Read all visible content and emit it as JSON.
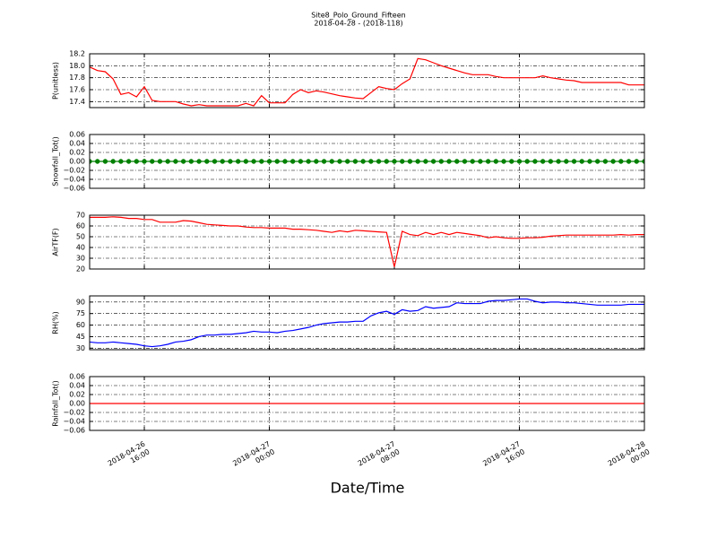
{
  "chart_data": {
    "type": "line",
    "title": "Site8_Polo_Ground_Fifteen",
    "subtitle": "2018-04-28 - (2018-118)",
    "xlabel": "Date/Time",
    "grid": true,
    "xlim": [
      "2018-04-26 12:30",
      "2018-04-28 00:00"
    ],
    "xticks": [
      {
        "value": "2018-04-26 16:00",
        "label": [
          "2018-04-26",
          "16:00"
        ]
      },
      {
        "value": "2018-04-27 00:00",
        "label": [
          "2018-04-27",
          "00:00"
        ]
      },
      {
        "value": "2018-04-27 08:00",
        "label": [
          "2018-04-27",
          "08:00"
        ]
      },
      {
        "value": "2018-04-27 16:00",
        "label": [
          "2018-04-27",
          "16:00"
        ]
      },
      {
        "value": "2018-04-28 00:00",
        "label": [
          "2018-04-28",
          "00:00"
        ]
      }
    ],
    "x": [
      "2018-04-26 12:30",
      "2018-04-26 13:00",
      "2018-04-26 13:30",
      "2018-04-26 14:00",
      "2018-04-26 14:30",
      "2018-04-26 15:00",
      "2018-04-26 15:30",
      "2018-04-26 16:00",
      "2018-04-26 16:30",
      "2018-04-26 17:00",
      "2018-04-26 17:30",
      "2018-04-26 18:00",
      "2018-04-26 18:30",
      "2018-04-26 19:00",
      "2018-04-26 19:30",
      "2018-04-26 20:00",
      "2018-04-26 20:30",
      "2018-04-26 21:00",
      "2018-04-26 21:30",
      "2018-04-26 22:00",
      "2018-04-26 22:30",
      "2018-04-26 23:00",
      "2018-04-26 23:30",
      "2018-04-27 00:00",
      "2018-04-27 00:30",
      "2018-04-27 01:00",
      "2018-04-27 01:30",
      "2018-04-27 02:00",
      "2018-04-27 02:30",
      "2018-04-27 03:00",
      "2018-04-27 03:30",
      "2018-04-27 04:00",
      "2018-04-27 04:30",
      "2018-04-27 05:00",
      "2018-04-27 05:30",
      "2018-04-27 06:00",
      "2018-04-27 06:30",
      "2018-04-27 07:00",
      "2018-04-27 07:30",
      "2018-04-27 08:00",
      "2018-04-27 08:30",
      "2018-04-27 09:00",
      "2018-04-27 09:30",
      "2018-04-27 10:00",
      "2018-04-27 10:30",
      "2018-04-27 11:00",
      "2018-04-27 11:30",
      "2018-04-27 12:00",
      "2018-04-27 12:30",
      "2018-04-27 13:00",
      "2018-04-27 13:30",
      "2018-04-27 14:00",
      "2018-04-27 14:30",
      "2018-04-27 15:00",
      "2018-04-27 15:30",
      "2018-04-27 16:00",
      "2018-04-27 16:30",
      "2018-04-27 17:00",
      "2018-04-27 17:30",
      "2018-04-27 18:00",
      "2018-04-27 18:30",
      "2018-04-27 19:00",
      "2018-04-27 19:30",
      "2018-04-27 20:00",
      "2018-04-27 20:30",
      "2018-04-27 21:00",
      "2018-04-27 21:30",
      "2018-04-27 22:00",
      "2018-04-27 22:30",
      "2018-04-27 23:00",
      "2018-04-27 23:30",
      "2018-04-28 00:00"
    ],
    "panels": [
      {
        "ylabel": "P(unitless)",
        "ylim": [
          17.3,
          18.2
        ],
        "yticks": [
          17.4,
          17.6,
          17.8,
          {
            "value": 18.0,
            "label": "18.0"
          },
          18.2
        ],
        "series": [
          {
            "color": "#ff0000",
            "values": [
              17.98,
              17.92,
              17.9,
              17.78,
              17.52,
              17.55,
              17.48,
              17.65,
              17.42,
              17.4,
              17.4,
              17.4,
              17.36,
              17.33,
              17.35,
              17.33,
              17.33,
              17.33,
              17.33,
              17.33,
              17.37,
              17.33,
              17.5,
              17.38,
              17.38,
              17.38,
              17.52,
              17.6,
              17.55,
              17.58,
              17.56,
              17.53,
              17.5,
              17.48,
              17.46,
              17.45,
              17.55,
              17.65,
              17.62,
              17.6,
              17.7,
              17.78,
              18.12,
              18.1,
              18.05,
              18.0,
              17.96,
              17.92,
              17.88,
              17.85,
              17.85,
              17.85,
              17.82,
              17.8,
              17.8,
              17.8,
              17.8,
              17.8,
              17.83,
              17.8,
              17.78,
              17.76,
              17.75,
              17.72,
              17.72,
              17.72,
              17.72,
              17.72,
              17.72,
              17.68,
              17.68,
              17.68
            ]
          }
        ]
      },
      {
        "ylabel": "Snowfall_Tot()",
        "ylim": [
          -0.06,
          0.06
        ],
        "yticks": [
          {
            "value": -0.06,
            "label": "−0.06"
          },
          {
            "value": -0.04,
            "label": "−0.04"
          },
          {
            "value": -0.02,
            "label": "−0.02"
          },
          {
            "value": 0,
            "label": "0.00"
          },
          0.02,
          0.04,
          0.06
        ],
        "series": [
          {
            "color": "#008000",
            "marker": "o",
            "values": [
              0,
              0,
              0,
              0,
              0,
              0,
              0,
              0,
              0,
              0,
              0,
              0,
              0,
              0,
              0,
              0,
              0,
              0,
              0,
              0,
              0,
              0,
              0,
              0,
              0,
              0,
              0,
              0,
              0,
              0,
              0,
              0,
              0,
              0,
              0,
              0,
              0,
              0,
              0,
              0,
              0,
              0,
              0,
              0,
              0,
              0,
              0,
              0,
              0,
              0,
              0,
              0,
              0,
              0,
              0,
              0,
              0,
              0,
              0,
              0,
              0,
              0,
              0,
              0,
              0,
              0,
              0,
              0,
              0,
              0,
              0,
              0
            ]
          }
        ]
      },
      {
        "ylabel": "AirTF(F)",
        "ylim": [
          20,
          70
        ],
        "yticks": [
          20,
          30,
          40,
          50,
          60,
          70
        ],
        "series": [
          {
            "color": "#ff0000",
            "values": [
              68,
              68,
              68,
              68.5,
              68,
              67,
              67,
              66,
              66,
              63.5,
              63.5,
              63.5,
              65,
              64.5,
              63,
              61.5,
              61,
              60.5,
              60,
              60,
              59,
              58.5,
              58.5,
              58,
              58,
              58,
              57,
              57,
              56.5,
              56,
              55,
              54,
              55.5,
              54.5,
              56,
              55.5,
              55,
              54.5,
              54,
              22,
              55,
              52,
              51,
              54,
              52,
              54,
              52,
              54,
              53,
              52,
              51,
              49,
              50,
              49,
              48.5,
              48.5,
              49,
              49,
              49.5,
              50.5,
              51,
              51.5,
              51.5,
              51.5,
              51.5,
              51.5,
              51.5,
              51.5,
              52,
              51.5,
              52,
              52
            ]
          }
        ]
      },
      {
        "ylabel": "RH(%)",
        "ylim": [
          28,
          98
        ],
        "yticks": [
          30,
          45,
          60,
          75,
          90
        ],
        "series": [
          {
            "color": "#0000ff",
            "values": [
              38,
              37,
              37,
              38,
              37,
              36,
              35,
              33,
              32,
              33,
              35,
              38,
              39,
              41,
              45,
              47,
              47,
              48,
              48,
              49,
              50,
              52,
              51,
              51,
              50,
              52,
              53,
              55,
              57,
              60,
              62,
              63,
              64,
              64,
              65,
              65,
              72,
              76,
              78,
              74,
              80,
              78,
              79,
              84,
              82,
              83,
              84,
              89,
              88,
              88,
              88,
              91,
              92,
              92,
              93,
              94,
              94,
              91,
              89,
              90,
              90,
              89,
              89,
              88,
              87,
              86,
              86,
              86,
              86,
              87,
              87,
              87
            ]
          }
        ]
      },
      {
        "ylabel": "Rainfall_Tot()",
        "ylim": [
          -0.06,
          0.06
        ],
        "yticks": [
          {
            "value": -0.06,
            "label": "−0.06"
          },
          {
            "value": -0.04,
            "label": "−0.04"
          },
          {
            "value": -0.02,
            "label": "−0.02"
          },
          {
            "value": 0,
            "label": "0.00"
          },
          0.02,
          0.04,
          0.06
        ],
        "series": [
          {
            "color": "#ff0000",
            "values": [
              0,
              0,
              0,
              0,
              0,
              0,
              0,
              0,
              0,
              0,
              0,
              0,
              0,
              0,
              0,
              0,
              0,
              0,
              0,
              0,
              0,
              0,
              0,
              0,
              0,
              0,
              0,
              0,
              0,
              0,
              0,
              0,
              0,
              0,
              0,
              0,
              0,
              0,
              0,
              0,
              0,
              0,
              0,
              0,
              0,
              0,
              0,
              0,
              0,
              0,
              0,
              0,
              0,
              0,
              0,
              0,
              0,
              0,
              0,
              0,
              0,
              0,
              0,
              0,
              0,
              0,
              0,
              0,
              0,
              0,
              0,
              0
            ]
          }
        ]
      }
    ]
  }
}
